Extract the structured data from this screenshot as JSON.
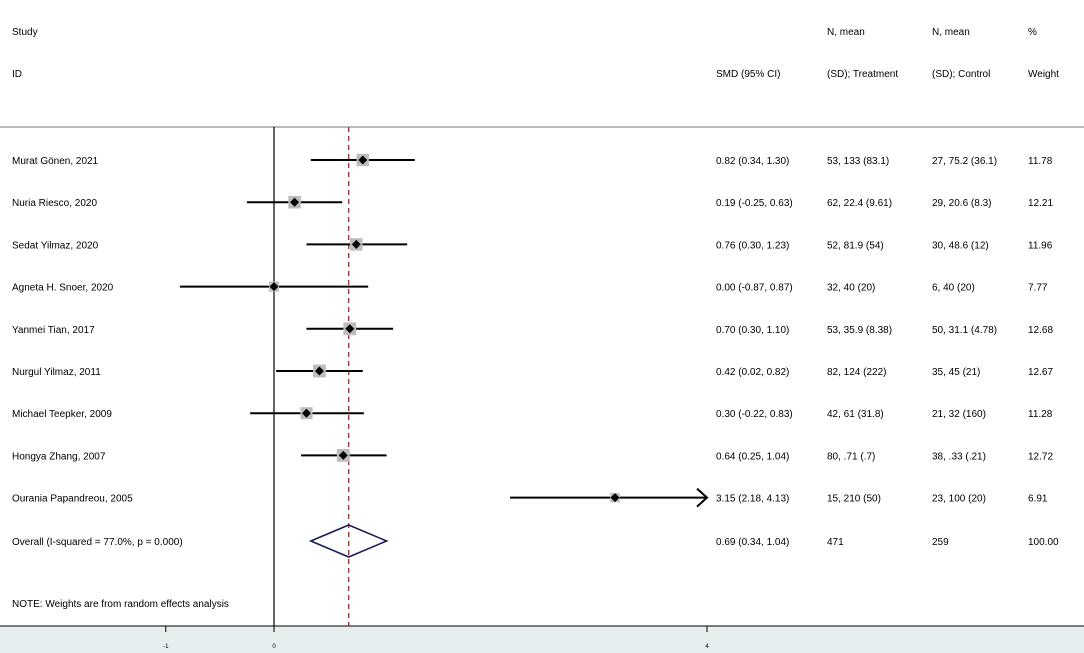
{
  "header": {
    "study_line1": "Study",
    "study_line2": "ID",
    "smd_line2": "SMD (95% CI)",
    "treat_line1": "N, mean",
    "treat_line2": "(SD); Treatment",
    "ctrl_line1": "N, mean",
    "ctrl_line2": "(SD); Control",
    "weight_line1": "%",
    "weight_line2": "Weight"
  },
  "chart_data": {
    "type": "forest",
    "x_ticks": [
      "-1",
      "0",
      "4"
    ],
    "xlim": [
      -1.0,
      4.0
    ],
    "overall_line": 0.69,
    "studies": [
      {
        "label": "Murat Gönen, 2021",
        "smd": 0.82,
        "lo": 0.34,
        "hi": 1.3,
        "ci_text": "0.82 (0.34, 1.30)",
        "treatment": "53, 133 (83.1)",
        "control": "27, 75.2 (36.1)",
        "weight": "11.78",
        "w": 11.78
      },
      {
        "label": "Nuria Riesco, 2020",
        "smd": 0.19,
        "lo": -0.25,
        "hi": 0.63,
        "ci_text": "0.19 (-0.25, 0.63)",
        "treatment": "62, 22.4 (9.61)",
        "control": "29, 20.6 (8.3)",
        "weight": "12.21",
        "w": 12.21
      },
      {
        "label": "Sedat Yilmaz, 2020",
        "smd": 0.76,
        "lo": 0.3,
        "hi": 1.23,
        "ci_text": "0.76 (0.30, 1.23)",
        "treatment": "52, 81.9 (54)",
        "control": "30, 48.6 (12)",
        "weight": "11.96",
        "w": 11.96
      },
      {
        "label": "Agneta H. Snoer, 2020",
        "smd": 0.0,
        "lo": -0.87,
        "hi": 0.87,
        "ci_text": "0.00 (-0.87, 0.87)",
        "treatment": "32, 40 (20)",
        "control": "6, 40 (20)",
        "weight": "7.77",
        "w": 7.77
      },
      {
        "label": "Yanmei Tian, 2017",
        "smd": 0.7,
        "lo": 0.3,
        "hi": 1.1,
        "ci_text": "0.70 (0.30, 1.10)",
        "treatment": "53, 35.9 (8.38)",
        "control": "50, 31.1 (4.78)",
        "weight": "12.68",
        "w": 12.68
      },
      {
        "label": "Nurgul Yilmaz, 2011",
        "smd": 0.42,
        "lo": 0.02,
        "hi": 0.82,
        "ci_text": "0.42 (0.02, 0.82)",
        "treatment": "82, 124 (222)",
        "control": "35, 45 (21)",
        "weight": "12.67",
        "w": 12.67
      },
      {
        "label": "Michael Teepker, 2009",
        "smd": 0.3,
        "lo": -0.22,
        "hi": 0.83,
        "ci_text": "0.30 (-0.22, 0.83)",
        "treatment": "42, 61 (31.8)",
        "control": "21, 32 (160)",
        "weight": "11.28",
        "w": 11.28
      },
      {
        "label": "Hongya Zhang, 2007",
        "smd": 0.64,
        "lo": 0.25,
        "hi": 1.04,
        "ci_text": "0.64 (0.25, 1.04)",
        "treatment": "80, .71 (.7)",
        "control": "38, .33 (.21)",
        "weight": "12.72",
        "w": 12.72
      },
      {
        "label": "Ourania Papandreou, 2005",
        "smd": 3.15,
        "lo": 2.18,
        "hi": 4.13,
        "ci_text": "3.15 (2.18, 4.13)",
        "treatment": "15, 210 (50)",
        "control": "23, 100 (20)",
        "weight": "6.91",
        "w": 6.91
      }
    ],
    "overall": {
      "label": "Overall  (I-squared = 77.0%, p = 0.000)",
      "smd": 0.69,
      "lo": 0.34,
      "hi": 1.04,
      "ci_text": "0.69 (0.34, 1.04)",
      "treatment": "471",
      "control": "259",
      "weight": "100.00"
    },
    "note": "NOTE: Weights are from random effects analysis",
    "colors": {
      "ci_line": "#000000",
      "weight_box": "#bdbdbd",
      "point": "#000000",
      "overall_diamond": "#1a1a5e",
      "overall_line": "#b22222",
      "axis_band": "#e6eef0"
    }
  }
}
